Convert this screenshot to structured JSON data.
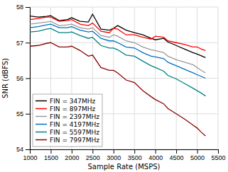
{
  "chart_data": {
    "type": "line",
    "xlabel": "Sample Rate (MSPS)",
    "ylabel": "SNR (dBFS)",
    "xlim": [
      1000,
      5500
    ],
    "ylim": [
      54,
      58
    ],
    "xticks": [
      1000,
      1500,
      2000,
      2500,
      3000,
      3500,
      4000,
      4500,
      5000,
      5500
    ],
    "yticks": [
      54,
      55,
      56,
      57,
      58
    ],
    "grid": true,
    "legend": "lower left",
    "x": [
      1000,
      1200,
      1400,
      1500,
      1700,
      1900,
      2000,
      2200,
      2400,
      2500,
      2700,
      2900,
      3000,
      3100,
      3300,
      3500,
      3700,
      3900,
      4000,
      4200,
      4300,
      4500,
      4700,
      4900,
      5000,
      5100,
      5200
    ],
    "series": [
      {
        "name": "FIN = 347MHz",
        "color": "#000000",
        "values": [
          57.75,
          57.72,
          57.74,
          57.76,
          57.62,
          57.65,
          57.7,
          57.6,
          57.58,
          57.8,
          57.38,
          57.35,
          57.4,
          57.48,
          57.35,
          57.28,
          57.22,
          57.12,
          57.08,
          57.12,
          57.02,
          56.92,
          56.82,
          56.72,
          56.68,
          56.63,
          56.58
        ]
      },
      {
        "name": "FIN = 897MHz",
        "color": "#ff0000",
        "values": [
          57.65,
          57.68,
          57.72,
          57.72,
          57.6,
          57.62,
          57.65,
          57.52,
          57.48,
          57.55,
          57.32,
          57.28,
          57.4,
          57.38,
          57.22,
          57.22,
          57.15,
          57.1,
          57.18,
          57.15,
          57.05,
          57.0,
          56.95,
          56.88,
          56.88,
          56.82,
          56.78
        ]
      },
      {
        "name": "FIN = 2397MHz",
        "color": "#999999",
        "values": [
          57.52,
          57.55,
          57.58,
          57.6,
          57.48,
          57.5,
          57.52,
          57.42,
          57.38,
          57.42,
          57.2,
          57.15,
          57.22,
          57.18,
          57.05,
          57.0,
          56.88,
          56.8,
          56.78,
          56.72,
          56.62,
          56.52,
          56.45,
          56.38,
          56.3,
          56.22,
          56.15
        ]
      },
      {
        "name": "FIN = 4197MHz",
        "color": "#0070c0",
        "values": [
          57.42,
          57.45,
          57.5,
          57.52,
          57.42,
          57.42,
          57.45,
          57.35,
          57.3,
          57.32,
          57.12,
          57.05,
          57.05,
          57.0,
          56.88,
          56.85,
          56.72,
          56.62,
          56.6,
          56.55,
          56.45,
          56.35,
          56.25,
          56.15,
          56.1,
          56.05,
          56.0
        ]
      },
      {
        "name": "FIN = 5597MHz",
        "color": "#008080",
        "values": [
          57.3,
          57.32,
          57.38,
          57.4,
          57.28,
          57.28,
          57.3,
          57.2,
          57.12,
          57.15,
          56.92,
          56.85,
          56.85,
          56.8,
          56.65,
          56.62,
          56.48,
          56.35,
          56.3,
          56.2,
          56.08,
          55.98,
          55.85,
          55.72,
          55.65,
          55.58,
          55.5
        ]
      },
      {
        "name": "FIN = 7997MHz",
        "color": "#8b0000",
        "values": [
          56.9,
          56.92,
          56.98,
          57.0,
          56.88,
          56.88,
          56.9,
          56.78,
          56.62,
          56.65,
          56.3,
          56.22,
          56.22,
          56.15,
          55.95,
          55.88,
          55.65,
          55.48,
          55.4,
          55.28,
          55.15,
          55.0,
          54.85,
          54.68,
          54.6,
          54.48,
          54.38
        ]
      }
    ]
  }
}
